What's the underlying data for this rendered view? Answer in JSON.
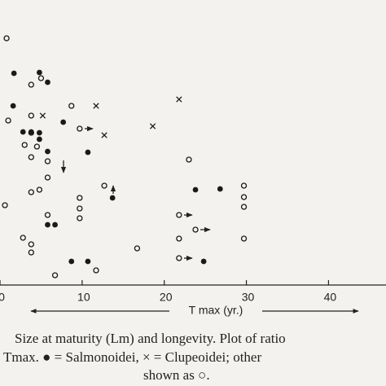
{
  "chart_data": {
    "type": "scatter",
    "x_label": "T max (yr.)",
    "caption": [
      "Size at maturity (Lm) and longevity.  Plot of ratio",
      "Tmax.  ● = Salmonoidei,  × = Clupeoidei;  other",
      "shown as ○."
    ],
    "xlim": [
      0,
      47
    ],
    "xticks": [
      0,
      10,
      20,
      30,
      40
    ],
    "ylim": [
      0,
      350
    ],
    "color": "#1a1a1a",
    "series": [
      {
        "marker": "open",
        "x": [
          0.8,
          3.8,
          5.0,
          1.0,
          3.8,
          3.8,
          3.0,
          4.5,
          3.8,
          5.8,
          8.7,
          9.7,
          5.8,
          3.8,
          4.8,
          0.6,
          9.7,
          9.7,
          9.7,
          5.8,
          2.8,
          3.8,
          3.8,
          6.7,
          11.7,
          12.7,
          16.7,
          21.8,
          21.8,
          21.8,
          23.0,
          23.8,
          29.7,
          29.7,
          29.7,
          29.7
        ],
        "y": [
          303,
          246,
          254,
          202,
          208,
          187,
          172,
          170,
          157,
          152,
          220,
          192,
          132,
          114,
          117,
          98,
          107,
          94,
          82,
          86,
          58,
          50,
          40,
          12,
          18,
          122,
          45,
          86,
          57,
          33,
          154,
          68,
          122,
          108,
          96,
          57
        ]
      },
      {
        "marker": "filled",
        "x": [
          1.7,
          4.8,
          5.8,
          1.6,
          2.8,
          3.8,
          4.8,
          4.8,
          5.8,
          7.7,
          10.7,
          13.7,
          23.8,
          26.8,
          5.8,
          6.7,
          8.7,
          10.7,
          24.8
        ],
        "y": [
          260,
          261,
          249,
          220,
          188,
          188,
          187,
          179,
          164,
          200,
          163,
          107,
          117,
          118,
          74,
          74,
          29,
          29,
          29
        ]
      },
      {
        "marker": "cross",
        "x": [
          5.2,
          11.7,
          12.7,
          18.6,
          21.8
        ],
        "y": [
          208,
          220,
          184,
          195,
          228
        ]
      }
    ]
  }
}
